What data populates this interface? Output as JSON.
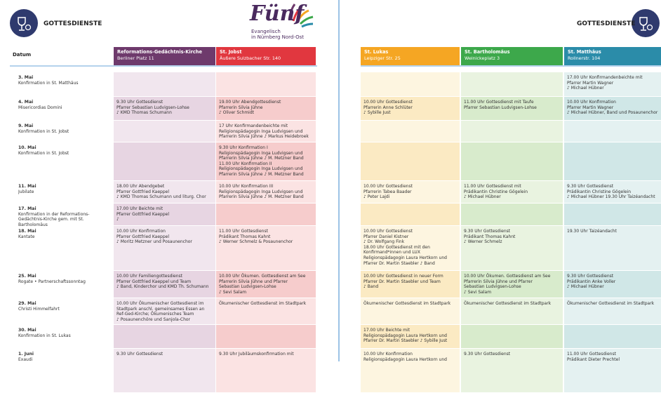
{
  "header": {
    "title_left": "GOTTESDIENSTE",
    "title_right": "GOTTESDIENSTE",
    "logo": "Fünf",
    "logo_line1": "Evangelisch",
    "logo_line2": "in Nürnberg Nord-Ost"
  },
  "table": {
    "date_header": "Datum",
    "columns": [
      {
        "name": "Reformations-Gedächtnis-Kirche",
        "address": "Berliner Platz 11",
        "color": "#6e3a6c",
        "tints": [
          "#f1e6ee",
          "#e7d5e2"
        ]
      },
      {
        "name": "St. Jobst",
        "address": "Äußere Sulzbacher Str. 140",
        "color": "#e1373f",
        "tints": [
          "#fbe3e3",
          "#f6cccc"
        ]
      },
      {
        "name": "St. Lukas",
        "address": "Leipziger Str. 25",
        "color": "#f5a623",
        "tints": [
          "#fdf5e0",
          "#fbeac3"
        ]
      },
      {
        "name": "St. Bartholomäus",
        "address": "Weinickeplatz 3",
        "color": "#3da84b",
        "tints": [
          "#e9f3e0",
          "#d8ebcc"
        ]
      },
      {
        "name": "St. Matthäus",
        "address": "Rollnerstr. 104",
        "color": "#2b8ca9",
        "tints": [
          "#e4f1f1",
          "#d0e7e7"
        ]
      }
    ],
    "rows": [
      {
        "date": "3. Mai",
        "occasion": "Konfirmation in St. Matthäus",
        "cells": [
          [],
          [],
          [],
          [],
          [
            "17.00 Uhr Konfirmandenbeichte mit",
            "Pfarrer Martin Wagner",
            "♪ Michael Hübner"
          ]
        ]
      },
      {
        "date": "4. Mai",
        "occasion": "Misericordias Domini",
        "cells": [
          [
            "9.30 Uhr Gottesdienst",
            "Pfarrer Sebastian Ludvigsen-Lohse",
            "♪ KMD Thomas Schumann"
          ],
          [
            "19.00 Uhr Abendgottesdienst",
            "Pfarrerin Silvia Jühne",
            "♪ Oliver Schmidt"
          ],
          [
            "10.00 Uhr Gottesdienst",
            "Pfarrerin Anne Schlüter",
            "♪ Sybille Just"
          ],
          [
            "11.00 Uhr Gottesdienst mit Taufe",
            "Pfarrer Sebastian Ludvigsen-Lohse"
          ],
          [
            "10.00 Uhr Konfirmation",
            "Pfarrer Martin Wagner",
            "♪ Michael Hübner, Band und Posaunenchor"
          ]
        ]
      },
      {
        "date": "9. Mai",
        "occasion": "Konfirmation in St. Jobst",
        "cells": [
          [],
          [
            "17 Uhr Konfirmandenbeichte mit",
            "Religionspädagogin Inga Ludvigsen und",
            "Pfarrerin Silvia Jühne ♪ Markus Heidebroek"
          ],
          [],
          [],
          []
        ]
      },
      {
        "date": "10. Mai",
        "occasion": "Konfirmation in St. Jobst",
        "cells": [
          [],
          [
            "9.30 Uhr Konfirmation I",
            "Religionspädagogin Inga Ludvigsen und",
            "Pfarrerin Silvia Jühne ♪ M. Metzner Band",
            "11.00 Uhr Konfirmation II",
            "Religionspädagogin Inga Ludvigsen und",
            "Pfarrerin Silvia Jühne ♪ M. Metzner Band"
          ],
          [],
          [],
          []
        ]
      },
      {
        "date": "11. Mai",
        "occasion": "Jubilate",
        "cells": [
          [
            "18.00 Uhr Abendgebet",
            "Pfarrer Gottfried Kaeppel",
            "♪ KMD Thomas Schumann und liturg. Chor"
          ],
          [
            "10.00 Uhr Konfirmation III",
            "Religionspädagogin Inga Ludvigsen und",
            "Pfarrerin Silvia Jühne ♪ M. Metzner Band"
          ],
          [
            "10.00 Uhr Gottesdienst",
            "Pfarrerin Tabea Baader",
            "♪ Peter Lajdi"
          ],
          [
            "11.00 Uhr Gottesdienst mit",
            "Prädikantin Christine Gögelein",
            "♪ Michael Hübner"
          ],
          [
            "9.30 Uhr Gottesdienst",
            "Prädikantin Christine Gögelein",
            "♪ Michael Hübner 19.30 Uhr Taizéandacht"
          ]
        ]
      },
      {
        "date": "17. Mai",
        "occasion": "Konfirmation in der Reformations-Gedächtnis-Kirche gem. mit St. Bartholomäus",
        "cells": [
          [
            "17.00 Uhr Beichte mit",
            "Pfarrer Gottfried Kaeppel",
            "♪"
          ],
          [],
          [],
          [],
          []
        ]
      },
      {
        "date": "18. Mai",
        "occasion": "Kantate",
        "cells": [
          [
            "10.00 Uhr Konfirmation",
            "Pfarrer Gottfried Kaeppel",
            "♪ Moritz Metzner und Posaunenchor"
          ],
          [
            "11.00 Uhr Gottesdienst",
            "Prädikant Thomas Kahnt",
            "♪ Werner Schmelz & Posaunenchor"
          ],
          [
            "10.00 Uhr Gottesdienst",
            "Pfarrer Daniel Kistner",
            "♪ Dr. Wolfgang Fink",
            "18.00 Uhr Gottesdienst mit den",
            "Konfirmand*innen und LUX",
            "Religionspädagogin Laura Hertkorn und",
            "Pfarrer Dr. Martin Staebler ♪ Band"
          ],
          [
            "9.30 Uhr Gottesdienst",
            "Prädikant Thomas Kahnt",
            "♪ Werner Schmelz"
          ],
          [
            "19.30 Uhr Taizéandacht"
          ]
        ]
      },
      {
        "date": "25. Mai",
        "occasion": "Rogate • Partnerschaftssonntag",
        "cells": [
          [
            "10.00 Uhr Familiengottesdienst",
            "Pfarrer Gottfried Kaeppel und Team",
            "♪ Band, Kinderchor und KMD Th. Schumann"
          ],
          [
            "10.00 Uhr Ökumen. Gottesdienst am See",
            "Pfarrerin Silvia Jühne und Pfarrer",
            "Sebastian Ludvigsen-Lohse",
            "♪ Sevi Salam"
          ],
          [
            "10.00 Uhr Gottesdienst in neuer Form",
            "Pfarrer Dr. Martin Staebler und Team",
            "♪ Band"
          ],
          [
            "10.00 Uhr Ökumen. Gottesdienst am See",
            "Pfarrerin Silvia Jühne und Pfarrer",
            "Sebastian Ludvigsen-Lohse",
            "♪ Sevi Salam"
          ],
          [
            "9.30 Uhr Gottesdienst",
            "Prädikantin Anke Voller",
            "♪ Michael Hübner"
          ]
        ]
      },
      {
        "date": "29. Mai",
        "occasion": "Christi Himmelfahrt",
        "cells": [
          [
            "10.00 Uhr Ökumenischer Gottesdienst im",
            "Stadtpark anschl. gemeinsames Essen an",
            "Ref-Ged-Kirche; Ökumenisches Team",
            "♪ Posaunenchöre und Sanjola-Chor"
          ],
          [
            "Ökumenischer Gottesdienst im Stadtpark"
          ],
          [
            "Ökumenischer Gottesdienst im Stadtpark"
          ],
          [
            "Ökumenischer Gottesdienst im Stadtpark"
          ],
          [
            "Ökumenischer Gottesdienst im Stadtpark"
          ]
        ]
      },
      {
        "date": "30. Mai",
        "occasion": "Konfirmation in St. Lukas",
        "cells": [
          [],
          [],
          [
            "17.00 Uhr Beichte mit",
            "Religionspädagogin Laura Hertkorn und",
            "Pfarrer Dr. Martin Staebler ♪ Sybille Just"
          ],
          [],
          []
        ]
      },
      {
        "date": "1. Juni",
        "occasion": "Exaudi",
        "cells": [
          [
            "9.30 Uhr Gottesdienst"
          ],
          [
            "9.30 Uhr Jubiläumskonfirmation mit"
          ],
          [
            "10.00 Uhr Konfirmation",
            "Religionspädagogin Laura Hertkorn und"
          ],
          [
            "9.30 Uhr Gottesdienst"
          ],
          [
            "11.00 Uhr Gottesdienst",
            "Prädikant Dieter Prechtel"
          ]
        ]
      }
    ]
  }
}
